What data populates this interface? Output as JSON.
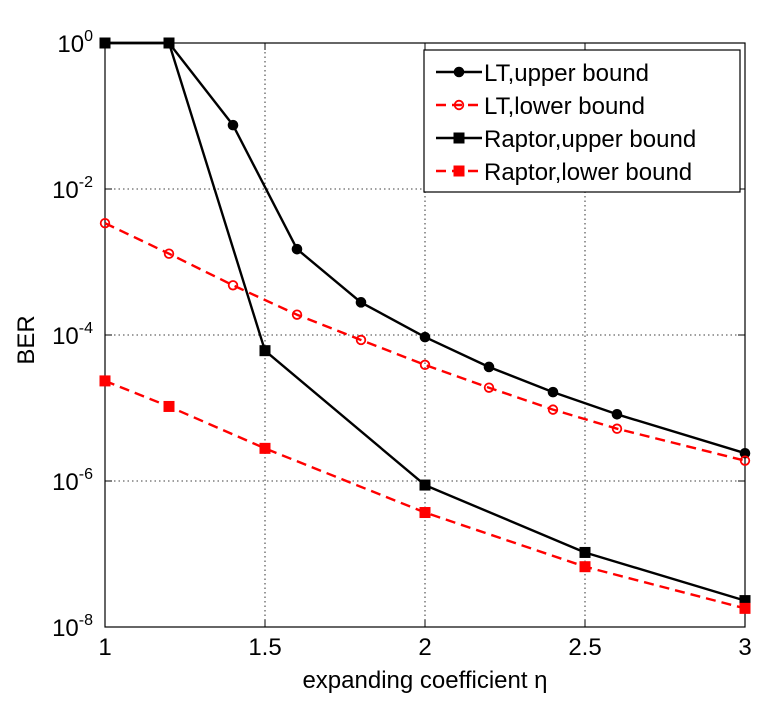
{
  "chart_data": {
    "type": "line",
    "xlabel": "expanding coefficient η",
    "ylabel": "BER",
    "xlim": [
      1,
      3
    ],
    "ylim": [
      1e-08,
      1
    ],
    "yscale": "log",
    "grid": true,
    "legend_position": "top-right",
    "x_ticks": [
      "1",
      "1.5",
      "2",
      "2.5",
      "3"
    ],
    "y_ticks": [
      {
        "base": "10",
        "exp": "0",
        "value": 1
      },
      {
        "base": "10",
        "exp": "-2",
        "value": 0.01
      },
      {
        "base": "10",
        "exp": "-4",
        "value": 0.0001
      },
      {
        "base": "10",
        "exp": "-6",
        "value": 1e-06
      },
      {
        "base": "10",
        "exp": "-8",
        "value": 1e-08
      }
    ],
    "series": [
      {
        "name": "LT,upper bound",
        "color": "#000000",
        "dash": false,
        "marker": "filled-circle",
        "x": [
          1,
          1.2,
          1.4,
          1.6,
          1.8,
          2.0,
          2.2,
          2.4,
          2.6,
          3.0
        ],
        "y": [
          1,
          1,
          0.075,
          0.0015,
          0.00028,
          9.35e-05,
          3.65e-05,
          1.65e-05,
          8.2e-06,
          2.4e-06
        ]
      },
      {
        "name": "LT,lower bound",
        "color": "#ff0000",
        "dash": true,
        "marker": "open-circle",
        "x": [
          1,
          1.2,
          1.4,
          1.6,
          1.8,
          2.0,
          2.2,
          2.4,
          2.6,
          3.0
        ],
        "y": [
          0.0034,
          0.0013,
          0.00048,
          0.00019,
          8.55e-05,
          3.9e-05,
          1.9e-05,
          9.5e-06,
          5.2e-06,
          1.9e-06
        ]
      },
      {
        "name": "Raptor,upper bound",
        "color": "#000000",
        "dash": false,
        "marker": "filled-square",
        "x": [
          1,
          1.2,
          1.5,
          2.0,
          2.5,
          3.0
        ],
        "y": [
          1,
          1,
          6.1e-05,
          8.8e-07,
          1.05e-07,
          2.3e-08
        ]
      },
      {
        "name": "Raptor,lower bound",
        "color": "#ff0000",
        "dash": true,
        "marker": "filled-square",
        "x": [
          1,
          1.2,
          1.5,
          2.0,
          2.5,
          3.0
        ],
        "y": [
          2.35e-05,
          1.05e-05,
          2.8e-06,
          3.7e-07,
          6.7e-08,
          1.8e-08
        ]
      }
    ]
  }
}
